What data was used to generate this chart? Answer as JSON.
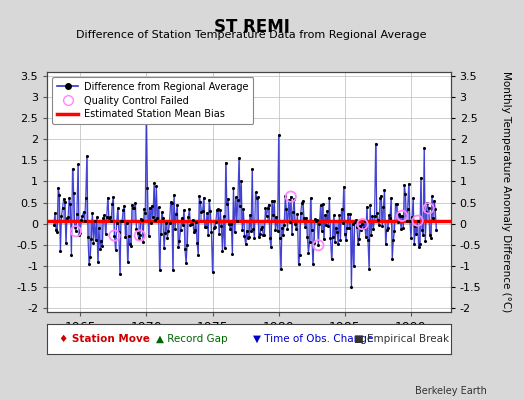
{
  "title": "ST REMI",
  "subtitle": "Difference of Station Temperature Data from Regional Average",
  "ylabel": "Monthly Temperature Anomaly Difference (°C)",
  "xlim": [
    1962.5,
    1993.0
  ],
  "ylim": [
    -2.1,
    3.6
  ],
  "yticks": [
    -2,
    -1.5,
    -1,
    -0.5,
    0,
    0.5,
    1,
    1.5,
    2,
    2.5,
    3,
    3.5
  ],
  "xticks": [
    1965,
    1970,
    1975,
    1980,
    1985,
    1990
  ],
  "bias_value": 0.05,
  "background_color": "#d8d8d8",
  "plot_bg_color": "#ffffff",
  "line_color": "#3333cc",
  "line_fill_color": "#8888ee",
  "dot_color": "#000000",
  "bias_color": "#ff0000",
  "qc_color": "#ff88ff",
  "watermark": "Berkeley Earth",
  "seed": 12345,
  "n_points": 348,
  "start_year": 1963.0,
  "qc_indices": [
    20,
    55,
    78,
    215,
    240,
    280,
    316,
    330,
    340
  ],
  "bottom_legend": [
    {
      "symbol": "♦",
      "color": "#cc0000",
      "label": "Station Move"
    },
    {
      "symbol": "▲",
      "color": "#006600",
      "label": "Record Gap"
    },
    {
      "symbol": "▼",
      "color": "#0000cc",
      "label": "Time of Obs. Change"
    },
    {
      "symbol": "■",
      "color": "#333333",
      "label": "Empirical Break"
    }
  ]
}
